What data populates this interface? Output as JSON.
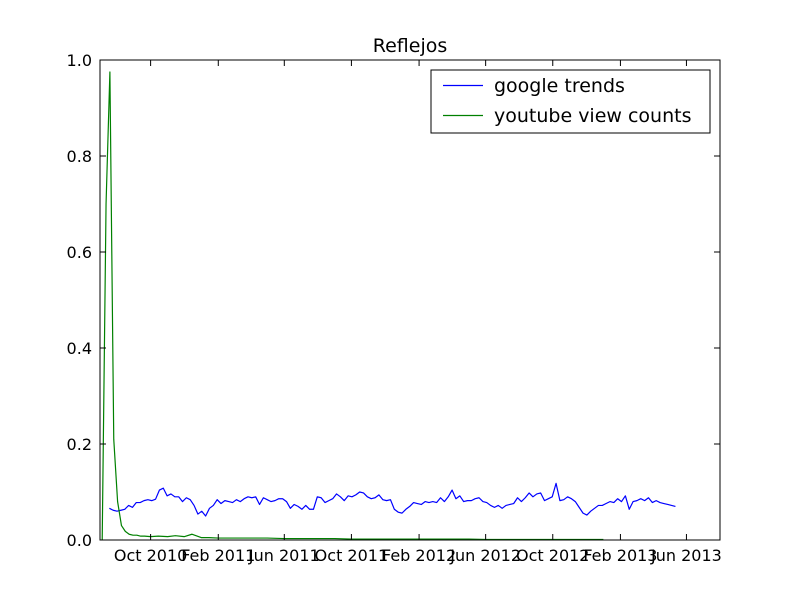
{
  "chart_data": {
    "type": "line",
    "title": "Reflejos",
    "xlabel": "",
    "ylabel": "",
    "xlim": [
      "2010-07-01",
      "2013-08-01"
    ],
    "ylim": [
      0,
      1.0
    ],
    "y_ticks": [
      "0.0",
      "0.2",
      "0.4",
      "0.6",
      "0.8",
      "1.0"
    ],
    "x_ticks": [
      {
        "date": "2010-10-01",
        "label": "Oct 2010"
      },
      {
        "date": "2011-02-01",
        "label": "Feb 2011"
      },
      {
        "date": "2011-06-01",
        "label": "Jun 2011"
      },
      {
        "date": "2011-10-01",
        "label": "Oct 2011"
      },
      {
        "date": "2012-02-01",
        "label": "Feb 2012"
      },
      {
        "date": "2012-06-01",
        "label": "Jun 2012"
      },
      {
        "date": "2012-10-01",
        "label": "Oct 2012"
      },
      {
        "date": "2013-02-01",
        "label": "Feb 2013"
      },
      {
        "date": "2013-06-01",
        "label": "Jun 2013"
      }
    ],
    "legend_position": "top-right",
    "grid": false,
    "series": [
      {
        "name": "google trends",
        "color": "#0000ff",
        "points": [
          [
            "2010-07-18",
            0.066
          ],
          [
            "2010-07-25",
            0.062
          ],
          [
            "2010-08-01",
            0.06
          ],
          [
            "2010-08-08",
            0.062
          ],
          [
            "2010-08-15",
            0.064
          ],
          [
            "2010-08-22",
            0.072
          ],
          [
            "2010-08-29",
            0.068
          ],
          [
            "2010-09-05",
            0.078
          ],
          [
            "2010-09-12",
            0.078
          ],
          [
            "2010-09-19",
            0.082
          ],
          [
            "2010-09-26",
            0.084
          ],
          [
            "2010-10-03",
            0.082
          ],
          [
            "2010-10-10",
            0.085
          ],
          [
            "2010-10-17",
            0.104
          ],
          [
            "2010-10-24",
            0.108
          ],
          [
            "2010-10-31",
            0.092
          ],
          [
            "2010-11-07",
            0.096
          ],
          [
            "2010-11-14",
            0.09
          ],
          [
            "2010-11-21",
            0.09
          ],
          [
            "2010-11-28",
            0.08
          ],
          [
            "2010-12-05",
            0.088
          ],
          [
            "2010-12-12",
            0.084
          ],
          [
            "2010-12-19",
            0.072
          ],
          [
            "2010-12-26",
            0.054
          ],
          [
            "2011-01-02",
            0.06
          ],
          [
            "2011-01-09",
            0.05
          ],
          [
            "2011-01-16",
            0.066
          ],
          [
            "2011-01-23",
            0.072
          ],
          [
            "2011-01-30",
            0.084
          ],
          [
            "2011-02-06",
            0.076
          ],
          [
            "2011-02-13",
            0.082
          ],
          [
            "2011-02-20",
            0.08
          ],
          [
            "2011-02-27",
            0.078
          ],
          [
            "2011-03-06",
            0.084
          ],
          [
            "2011-03-13",
            0.08
          ],
          [
            "2011-03-20",
            0.086
          ],
          [
            "2011-03-27",
            0.09
          ],
          [
            "2011-04-03",
            0.088
          ],
          [
            "2011-04-10",
            0.09
          ],
          [
            "2011-04-17",
            0.074
          ],
          [
            "2011-04-24",
            0.088
          ],
          [
            "2011-05-01",
            0.084
          ],
          [
            "2011-05-08",
            0.08
          ],
          [
            "2011-05-15",
            0.082
          ],
          [
            "2011-05-22",
            0.086
          ],
          [
            "2011-05-29",
            0.086
          ],
          [
            "2011-06-05",
            0.08
          ],
          [
            "2011-06-12",
            0.066
          ],
          [
            "2011-06-19",
            0.074
          ],
          [
            "2011-06-26",
            0.07
          ],
          [
            "2011-07-03",
            0.064
          ],
          [
            "2011-07-10",
            0.072
          ],
          [
            "2011-07-17",
            0.064
          ],
          [
            "2011-07-24",
            0.064
          ],
          [
            "2011-07-31",
            0.09
          ],
          [
            "2011-08-07",
            0.088
          ],
          [
            "2011-08-14",
            0.078
          ],
          [
            "2011-08-21",
            0.082
          ],
          [
            "2011-08-28",
            0.086
          ],
          [
            "2011-09-04",
            0.096
          ],
          [
            "2011-09-11",
            0.09
          ],
          [
            "2011-09-18",
            0.082
          ],
          [
            "2011-09-25",
            0.092
          ],
          [
            "2011-10-02",
            0.09
          ],
          [
            "2011-10-09",
            0.094
          ],
          [
            "2011-10-16",
            0.1
          ],
          [
            "2011-10-23",
            0.098
          ],
          [
            "2011-10-30",
            0.09
          ],
          [
            "2011-11-06",
            0.086
          ],
          [
            "2011-11-13",
            0.088
          ],
          [
            "2011-11-20",
            0.094
          ],
          [
            "2011-11-27",
            0.084
          ],
          [
            "2011-12-04",
            0.082
          ],
          [
            "2011-12-11",
            0.084
          ],
          [
            "2011-12-18",
            0.064
          ],
          [
            "2011-12-25",
            0.058
          ],
          [
            "2012-01-01",
            0.056
          ],
          [
            "2012-01-08",
            0.064
          ],
          [
            "2012-01-15",
            0.07
          ],
          [
            "2012-01-22",
            0.078
          ],
          [
            "2012-01-29",
            0.076
          ],
          [
            "2012-02-05",
            0.074
          ],
          [
            "2012-02-12",
            0.08
          ],
          [
            "2012-02-19",
            0.078
          ],
          [
            "2012-02-26",
            0.08
          ],
          [
            "2012-03-04",
            0.078
          ],
          [
            "2012-03-11",
            0.088
          ],
          [
            "2012-03-18",
            0.08
          ],
          [
            "2012-03-25",
            0.09
          ],
          [
            "2012-04-01",
            0.104
          ],
          [
            "2012-04-08",
            0.086
          ],
          [
            "2012-04-15",
            0.092
          ],
          [
            "2012-04-22",
            0.08
          ],
          [
            "2012-04-29",
            0.082
          ],
          [
            "2012-05-06",
            0.082
          ],
          [
            "2012-05-13",
            0.086
          ],
          [
            "2012-05-20",
            0.088
          ],
          [
            "2012-05-27",
            0.08
          ],
          [
            "2012-06-03",
            0.078
          ],
          [
            "2012-06-10",
            0.072
          ],
          [
            "2012-06-17",
            0.068
          ],
          [
            "2012-06-24",
            0.072
          ],
          [
            "2012-07-01",
            0.066
          ],
          [
            "2012-07-08",
            0.072
          ],
          [
            "2012-07-15",
            0.074
          ],
          [
            "2012-07-22",
            0.076
          ],
          [
            "2012-07-29",
            0.088
          ],
          [
            "2012-08-05",
            0.08
          ],
          [
            "2012-08-12",
            0.088
          ],
          [
            "2012-08-19",
            0.098
          ],
          [
            "2012-08-26",
            0.09
          ],
          [
            "2012-09-02",
            0.096
          ],
          [
            "2012-09-09",
            0.098
          ],
          [
            "2012-09-16",
            0.082
          ],
          [
            "2012-09-23",
            0.086
          ],
          [
            "2012-09-30",
            0.09
          ],
          [
            "2012-10-07",
            0.118
          ],
          [
            "2012-10-14",
            0.082
          ],
          [
            "2012-10-21",
            0.084
          ],
          [
            "2012-10-28",
            0.09
          ],
          [
            "2012-11-04",
            0.086
          ],
          [
            "2012-11-11",
            0.08
          ],
          [
            "2012-11-18",
            0.068
          ],
          [
            "2012-11-25",
            0.056
          ],
          [
            "2012-12-02",
            0.052
          ],
          [
            "2012-12-09",
            0.06
          ],
          [
            "2012-12-16",
            0.066
          ],
          [
            "2012-12-23",
            0.072
          ],
          [
            "2012-12-30",
            0.072
          ],
          [
            "2013-01-06",
            0.076
          ],
          [
            "2013-01-13",
            0.08
          ],
          [
            "2013-01-20",
            0.078
          ],
          [
            "2013-01-27",
            0.086
          ],
          [
            "2013-02-03",
            0.08
          ],
          [
            "2013-02-10",
            0.092
          ],
          [
            "2013-02-17",
            0.064
          ],
          [
            "2013-02-24",
            0.08
          ],
          [
            "2013-03-03",
            0.082
          ],
          [
            "2013-03-10",
            0.086
          ],
          [
            "2013-03-17",
            0.082
          ],
          [
            "2013-03-24",
            0.088
          ],
          [
            "2013-03-31",
            0.078
          ],
          [
            "2013-04-07",
            0.082
          ],
          [
            "2013-04-14",
            0.078
          ],
          [
            "2013-04-21",
            0.076
          ],
          [
            "2013-04-28",
            0.074
          ],
          [
            "2013-05-05",
            0.072
          ],
          [
            "2013-05-12",
            0.07
          ]
        ]
      },
      {
        "name": "youtube view counts",
        "color": "#008000",
        "points": [
          [
            "2010-07-05",
            0.0
          ],
          [
            "2010-07-12",
            0.7
          ],
          [
            "2010-07-19",
            0.975
          ],
          [
            "2010-07-26",
            0.21
          ],
          [
            "2010-08-02",
            0.08
          ],
          [
            "2010-08-09",
            0.03
          ],
          [
            "2010-08-16",
            0.018
          ],
          [
            "2010-08-23",
            0.012
          ],
          [
            "2010-08-30",
            0.01
          ],
          [
            "2010-09-06",
            0.01
          ],
          [
            "2010-09-13",
            0.008
          ],
          [
            "2010-09-20",
            0.008
          ],
          [
            "2010-10-01",
            0.007
          ],
          [
            "2010-10-15",
            0.008
          ],
          [
            "2010-11-01",
            0.007
          ],
          [
            "2010-11-15",
            0.009
          ],
          [
            "2010-12-01",
            0.007
          ],
          [
            "2010-12-15",
            0.012
          ],
          [
            "2011-01-01",
            0.005
          ],
          [
            "2011-01-15",
            0.005
          ],
          [
            "2011-02-01",
            0.004
          ],
          [
            "2011-03-01",
            0.004
          ],
          [
            "2011-04-01",
            0.004
          ],
          [
            "2011-05-01",
            0.004
          ],
          [
            "2011-06-01",
            0.003
          ],
          [
            "2011-07-01",
            0.003
          ],
          [
            "2011-08-01",
            0.003
          ],
          [
            "2011-09-01",
            0.003
          ],
          [
            "2011-10-01",
            0.002
          ],
          [
            "2011-11-01",
            0.002
          ],
          [
            "2011-12-01",
            0.002
          ],
          [
            "2012-01-01",
            0.002
          ],
          [
            "2012-02-01",
            0.002
          ],
          [
            "2012-03-01",
            0.002
          ],
          [
            "2012-04-01",
            0.002
          ],
          [
            "2012-05-01",
            0.002
          ],
          [
            "2012-06-01",
            0.001
          ],
          [
            "2012-07-01",
            0.001
          ],
          [
            "2012-08-01",
            0.001
          ],
          [
            "2012-09-01",
            0.001
          ],
          [
            "2012-10-01",
            0.001
          ],
          [
            "2012-11-01",
            0.001
          ],
          [
            "2012-12-01",
            0.001
          ],
          [
            "2013-01-01",
            0.001
          ]
        ]
      }
    ]
  }
}
